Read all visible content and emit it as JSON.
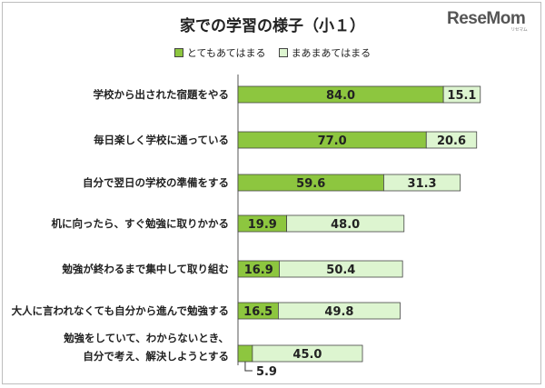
{
  "title": "家での学習の様子（小１）",
  "brand": {
    "name": "ReseMom",
    "tm": "リセマム"
  },
  "chart_data": {
    "type": "bar",
    "stacked": true,
    "orientation": "horizontal",
    "title": "家での学習の様子（小１）",
    "legend_position": "top",
    "colors": {
      "series1": "#8dc63f",
      "series2": "#ddf5d0",
      "outline": "#444444"
    },
    "categories": [
      "学校から出された宿題をやる",
      "毎日楽しく学校に通っている",
      "自分で翌日の学校の準備をする",
      "机に向ったら、すぐ勉強に取りかかる",
      "勉強が終わるまで集中して取り組む",
      "大人に言われなくても自分から進んで勉強する",
      [
        "勉強をしていて、わからないとき、",
        "自分で考え、解決しようとする"
      ]
    ],
    "series": [
      {
        "name": "とてもあてはまる",
        "values": [
          84.0,
          77.0,
          59.6,
          19.9,
          16.9,
          16.5,
          5.9
        ]
      },
      {
        "name": "まあまあてはまる",
        "values": [
          15.1,
          20.6,
          31.3,
          48.0,
          50.4,
          49.8,
          45.0
        ]
      }
    ],
    "value_labels": [
      [
        "84.0",
        "15.1"
      ],
      [
        "77.0",
        "20.6"
      ],
      [
        "59.6",
        "31.3"
      ],
      [
        "19.9",
        "48.0"
      ],
      [
        "16.9",
        "50.4"
      ],
      [
        "16.5",
        "49.8"
      ],
      [
        "5.9",
        "45.0"
      ]
    ],
    "xlim": [
      0,
      100
    ]
  }
}
